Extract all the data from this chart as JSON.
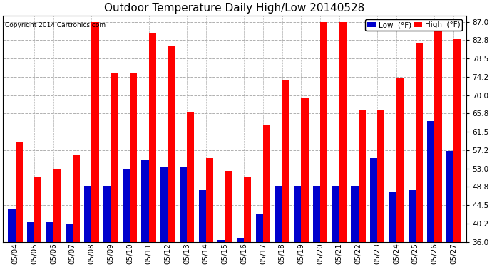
{
  "title": "Outdoor Temperature Daily High/Low 20140528",
  "copyright": "Copyright 2014 Cartronics.com",
  "legend_low": "Low  (°F)",
  "legend_high": "High  (°F)",
  "dates": [
    "05/04",
    "05/05",
    "05/06",
    "05/07",
    "05/08",
    "05/09",
    "05/10",
    "05/11",
    "05/12",
    "05/13",
    "05/14",
    "05/15",
    "05/16",
    "05/17",
    "05/18",
    "05/19",
    "05/20",
    "05/21",
    "05/22",
    "05/23",
    "05/24",
    "05/25",
    "05/26",
    "05/27"
  ],
  "high": [
    59.0,
    51.0,
    53.0,
    56.0,
    87.0,
    75.0,
    75.0,
    84.5,
    81.5,
    66.0,
    55.5,
    52.5,
    51.0,
    63.0,
    73.5,
    69.5,
    87.0,
    87.0,
    66.5,
    66.5,
    74.0,
    82.0,
    87.0,
    83.0
  ],
  "low": [
    43.5,
    40.5,
    40.5,
    40.0,
    49.0,
    49.0,
    53.0,
    55.0,
    53.5,
    53.5,
    48.0,
    36.5,
    37.0,
    42.5,
    49.0,
    49.0,
    49.0,
    49.0,
    49.0,
    55.5,
    47.5,
    48.0,
    64.0,
    57.0
  ],
  "ylim": [
    36.0,
    88.5
  ],
  "yticks": [
    36.0,
    40.2,
    44.5,
    48.8,
    53.0,
    57.2,
    61.5,
    65.8,
    70.0,
    74.2,
    78.5,
    82.8,
    87.0
  ],
  "bar_color_high": "#ff0000",
  "bar_color_low": "#0000cc",
  "background_color": "#ffffff",
  "grid_color": "#b0b0b0",
  "title_fontsize": 11,
  "tick_fontsize": 7.5,
  "bar_width": 0.38
}
